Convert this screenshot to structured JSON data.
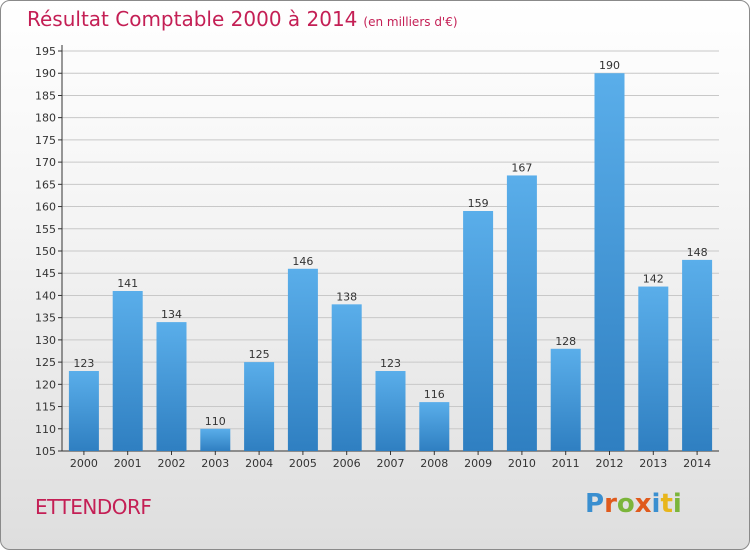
{
  "header": {
    "title": "Résultat Comptable 2000 à 2014",
    "subtitle": "(en milliers d'€)"
  },
  "footer": {
    "place": "ETTENDORF",
    "logo": {
      "text": "Proxiti",
      "colors": [
        "#3a8fd0",
        "#e05a1c",
        "#7bb53a",
        "#e05a1c",
        "#3a8fd0",
        "#e8b61c",
        "#7bb53a"
      ]
    }
  },
  "colors": {
    "accent": "#c41f55",
    "bar_top": "#5aaeea",
    "bar_bottom": "#2f7fc1",
    "grid": "#c8c8c8"
  },
  "chart_data": {
    "type": "bar",
    "categories": [
      "2000",
      "2001",
      "2002",
      "2003",
      "2004",
      "2005",
      "2006",
      "2007",
      "2008",
      "2009",
      "2010",
      "2011",
      "2012",
      "2013",
      "2014"
    ],
    "values": [
      123,
      141,
      134,
      110,
      125,
      146,
      138,
      123,
      116,
      159,
      167,
      128,
      190,
      142,
      148
    ],
    "ylim": [
      105,
      195
    ],
    "yticks": [
      105,
      110,
      115,
      120,
      125,
      130,
      135,
      140,
      145,
      150,
      155,
      160,
      165,
      170,
      175,
      180,
      185,
      190,
      195
    ],
    "grid": true
  }
}
